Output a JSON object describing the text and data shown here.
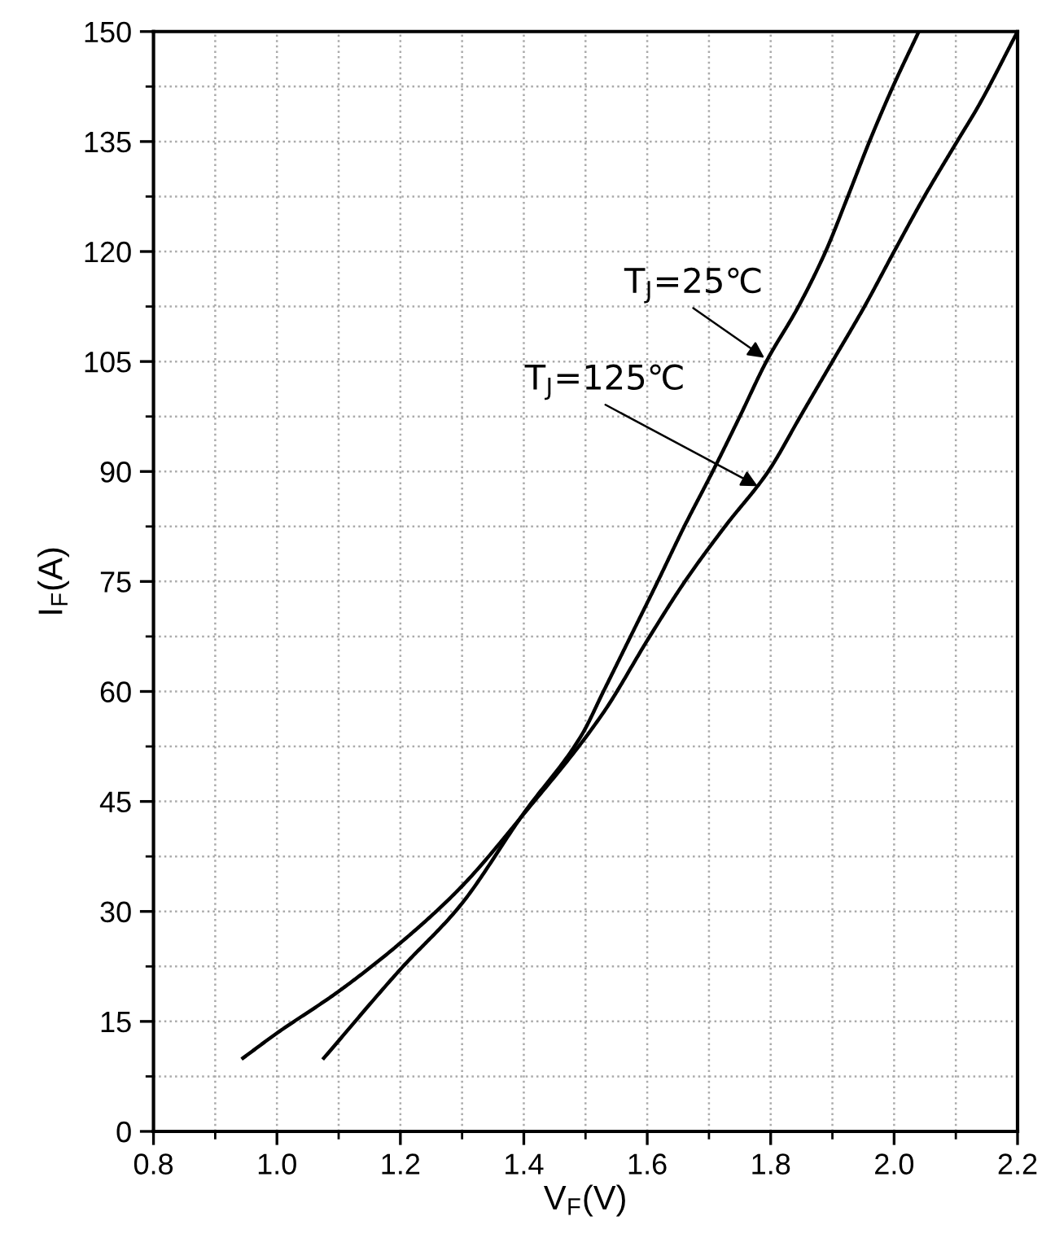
{
  "chart_data": {
    "type": "line",
    "xlabel": "V$_{F}$(V)",
    "ylabel": "I$_{F}$(A)",
    "xlim": [
      0.8,
      2.2
    ],
    "xticks": [
      {
        "value": 0.8,
        "label": "0.8"
      },
      {
        "value": 1.0,
        "label": "1.0"
      },
      {
        "value": 1.2,
        "label": "1.2"
      },
      {
        "value": 1.4,
        "label": "1.4"
      },
      {
        "value": 1.6,
        "label": "1.6"
      },
      {
        "value": 1.8,
        "label": "1.8"
      },
      {
        "value": 2.0,
        "label": "2.0"
      },
      {
        "value": 2.2,
        "label": "2.2"
      }
    ],
    "ylim": [
      0,
      150
    ],
    "yticks": [
      0,
      15,
      30,
      45,
      60,
      75,
      90,
      105,
      120,
      135,
      150
    ],
    "grid": true,
    "legend": false,
    "marker": "none",
    "line_style": "solid",
    "series": [
      {
        "color": "#000000",
        "x": [
          1.076,
          1.2,
          1.297,
          1.4,
          1.494,
          1.529,
          1.573,
          1.617,
          1.66,
          1.706,
          1.75,
          1.793,
          1.845,
          1.889,
          1.925,
          1.96,
          1.996,
          2.04
        ],
        "values": [
          10,
          22.1,
          30.8,
          43.4,
          54.1,
          60,
          67.5,
          75,
          82.5,
          90,
          97.5,
          105,
          112.5,
          120,
          127.5,
          135,
          142.1,
          150
        ]
      },
      {
        "color": "#000000",
        "x": [
          0.945,
          1.0,
          1.1,
          1.2,
          1.297,
          1.4,
          1.528,
          1.604,
          1.661,
          1.726,
          1.796,
          1.848,
          1.9,
          1.952,
          2.0,
          2.049,
          2.102,
          2.137,
          2.2
        ],
        "values": [
          10,
          13.4,
          19.1,
          25.7,
          33.2,
          43.3,
          57,
          67.5,
          75,
          82.5,
          90,
          97.5,
          105,
          112.5,
          120,
          127.5,
          135,
          139.9,
          150
        ]
      }
    ],
    "annotations": [
      {
        "text": "T$_{J}$=25℃",
        "x": 1.79,
        "y": 105.5
      },
      {
        "text": "T$_{J}$=125℃",
        "x": 1.779,
        "y": 88
      }
    ]
  }
}
